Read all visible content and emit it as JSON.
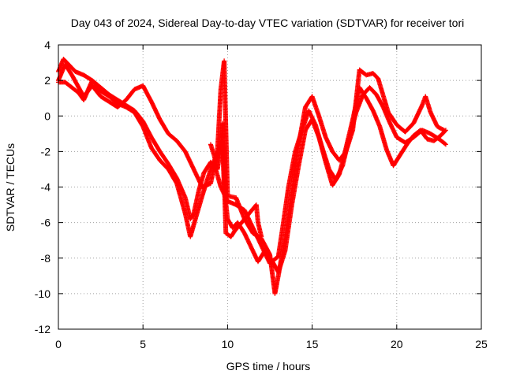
{
  "chart_data": {
    "type": "scatter",
    "title": "Day 043 of 2024, Sidereal Day-to-day VTEC variation (SDTVAR) for receiver tori",
    "xlabel": "GPS time / hours",
    "ylabel": "SDTVAR / TECUs",
    "xlim": [
      0,
      25
    ],
    "ylim": [
      -12,
      4
    ],
    "xticks": [
      "0",
      "5",
      "10",
      "15",
      "20",
      "25"
    ],
    "yticks": [
      "4",
      "2",
      "0",
      "-2",
      "-4",
      "-6",
      "-8",
      "-10",
      "-12"
    ],
    "grid": true,
    "marker": "+",
    "color": "#ff0000",
    "series": [
      {
        "values": [
          [
            0.0,
            2.5
          ],
          [
            0.3,
            3.2
          ],
          [
            0.6,
            2.9
          ],
          [
            1.0,
            2.5
          ],
          [
            1.5,
            2.3
          ],
          [
            2.0,
            2.0
          ],
          [
            2.5,
            1.6
          ],
          [
            3.0,
            1.2
          ],
          [
            3.5,
            0.9
          ],
          [
            4.0,
            0.6
          ],
          [
            4.5,
            0.3
          ],
          [
            5.0,
            -0.3
          ],
          [
            5.5,
            -1.2
          ],
          [
            6.0,
            -2.0
          ],
          [
            6.5,
            -2.7
          ],
          [
            7.0,
            -3.5
          ],
          [
            7.5,
            -4.6
          ],
          [
            7.8,
            -5.8
          ],
          [
            8.0,
            -5.5
          ],
          [
            8.3,
            -4.2
          ],
          [
            8.6,
            -3.2
          ],
          [
            9.0,
            -2.6
          ],
          [
            9.3,
            -3.0
          ],
          [
            9.6,
            -4.0
          ],
          [
            10.0,
            -4.8
          ],
          [
            10.5,
            -5.0
          ],
          [
            11.0,
            -5.3
          ],
          [
            11.5,
            -6.3
          ],
          [
            12.0,
            -7.3
          ],
          [
            12.5,
            -8.3
          ],
          [
            13.0,
            -7.9
          ],
          [
            13.3,
            -6.0
          ],
          [
            13.6,
            -4.0
          ],
          [
            14.0,
            -2.0
          ],
          [
            14.4,
            -0.8
          ],
          [
            14.8,
            0.3
          ],
          [
            15.2,
            -0.5
          ],
          [
            15.6,
            -1.8
          ],
          [
            16.0,
            -3.0
          ],
          [
            16.4,
            -3.6
          ],
          [
            16.8,
            -2.8
          ],
          [
            17.2,
            -1.2
          ],
          [
            17.6,
            0.2
          ],
          [
            18.0,
            1.2
          ],
          [
            18.4,
            1.6
          ],
          [
            18.8,
            1.2
          ],
          [
            19.2,
            0.5
          ],
          [
            19.6,
            -0.4
          ],
          [
            20.0,
            -1.2
          ],
          [
            20.5,
            -1.5
          ],
          [
            21.0,
            -1.2
          ],
          [
            21.5,
            -0.8
          ],
          [
            22.0,
            -1.0
          ],
          [
            22.5,
            -1.3
          ],
          [
            22.9,
            -1.6
          ]
        ]
      },
      {
        "values": [
          [
            0.0,
            1.9
          ],
          [
            0.4,
            1.9
          ],
          [
            0.8,
            1.6
          ],
          [
            1.2,
            1.3
          ],
          [
            1.5,
            0.9
          ],
          [
            2.0,
            2.0
          ],
          [
            2.5,
            1.4
          ],
          [
            3.0,
            1.1
          ],
          [
            3.5,
            0.7
          ],
          [
            4.0,
            0.5
          ],
          [
            4.5,
            0.2
          ],
          [
            5.0,
            -0.6
          ],
          [
            5.5,
            -1.8
          ],
          [
            6.0,
            -2.5
          ],
          [
            6.5,
            -3.0
          ],
          [
            7.0,
            -3.8
          ],
          [
            7.5,
            -5.5
          ],
          [
            7.8,
            -6.8
          ],
          [
            8.1,
            -5.8
          ],
          [
            8.5,
            -4.5
          ],
          [
            9.0,
            -3.0
          ],
          [
            9.4,
            -2.1
          ],
          [
            9.7,
            -1.4
          ],
          [
            9.8,
            -4.0
          ],
          [
            10.0,
            -5.8
          ],
          [
            10.3,
            -6.3
          ],
          [
            10.6,
            -6.0
          ],
          [
            11.0,
            -6.6
          ],
          [
            11.4,
            -7.4
          ],
          [
            11.8,
            -8.2
          ],
          [
            12.2,
            -7.6
          ],
          [
            12.6,
            -8.1
          ],
          [
            13.0,
            -8.8
          ],
          [
            13.4,
            -7.6
          ],
          [
            13.8,
            -5.0
          ],
          [
            14.2,
            -2.8
          ],
          [
            14.6,
            -0.8
          ],
          [
            15.0,
            -0.2
          ],
          [
            15.4,
            -1.2
          ],
          [
            15.8,
            -2.6
          ],
          [
            16.2,
            -3.9
          ],
          [
            16.6,
            -3.3
          ],
          [
            17.0,
            -1.8
          ],
          [
            17.4,
            -0.2
          ],
          [
            17.8,
            1.6
          ],
          [
            18.2,
            1.0
          ],
          [
            18.6,
            0.3
          ],
          [
            19.0,
            -0.6
          ],
          [
            19.4,
            -1.9
          ],
          [
            19.8,
            -2.8
          ],
          [
            20.2,
            -2.2
          ],
          [
            20.6,
            -1.6
          ],
          [
            21.0,
            -1.1
          ],
          [
            21.4,
            -0.8
          ],
          [
            21.8,
            -1.3
          ],
          [
            22.2,
            -1.4
          ],
          [
            22.6,
            -1.1
          ],
          [
            22.9,
            -0.8
          ]
        ]
      },
      {
        "values": [
          [
            0.0,
            2.0
          ],
          [
            0.4,
            2.9
          ],
          [
            0.8,
            2.3
          ],
          [
            1.2,
            1.6
          ],
          [
            1.5,
            1.1
          ],
          [
            2.0,
            1.7
          ],
          [
            2.5,
            1.1
          ],
          [
            3.0,
            0.8
          ],
          [
            3.5,
            0.5
          ],
          [
            4.0,
            0.9
          ],
          [
            4.5,
            1.5
          ],
          [
            5.0,
            1.7
          ],
          [
            5.5,
            0.8
          ],
          [
            6.0,
            -0.2
          ],
          [
            6.5,
            -1.0
          ],
          [
            7.0,
            -1.4
          ],
          [
            7.5,
            -2.0
          ],
          [
            8.0,
            -3.0
          ],
          [
            8.5,
            -4.0
          ],
          [
            9.0,
            -3.8
          ],
          [
            9.4,
            -2.0
          ],
          [
            9.6,
            1.5
          ],
          [
            9.8,
            3.1
          ],
          [
            10.0,
            -4.5
          ],
          [
            10.5,
            -4.6
          ],
          [
            11.0,
            -5.8
          ],
          [
            11.5,
            -6.6
          ],
          [
            12.0,
            -6.9
          ],
          [
            12.5,
            -7.8
          ],
          [
            12.8,
            -10.0
          ],
          [
            13.0,
            -9.0
          ],
          [
            13.4,
            -6.8
          ],
          [
            13.8,
            -4.2
          ],
          [
            14.2,
            -1.6
          ],
          [
            14.6,
            0.5
          ],
          [
            15.0,
            1.1
          ],
          [
            15.4,
            0.0
          ],
          [
            15.8,
            -1.2
          ],
          [
            16.2,
            -2.0
          ],
          [
            16.6,
            -2.5
          ],
          [
            17.0,
            -2.0
          ],
          [
            17.4,
            -0.8
          ],
          [
            17.8,
            2.6
          ],
          [
            18.2,
            2.3
          ],
          [
            18.6,
            2.4
          ],
          [
            18.9,
            2.1
          ],
          [
            19.5,
            0.2
          ],
          [
            20.0,
            -0.5
          ],
          [
            20.5,
            -0.9
          ],
          [
            21.0,
            -0.4
          ],
          [
            21.5,
            0.6
          ],
          [
            21.7,
            1.1
          ],
          [
            22.0,
            0.2
          ],
          [
            22.4,
            -0.6
          ],
          [
            22.8,
            -0.8
          ]
        ]
      },
      {
        "values": [
          [
            9.0,
            -1.6
          ],
          [
            9.2,
            -2.2
          ],
          [
            9.4,
            -3.0
          ],
          [
            9.6,
            -1.8
          ],
          [
            9.7,
            -0.4
          ],
          [
            9.9,
            -6.6
          ],
          [
            10.2,
            -6.8
          ],
          [
            10.4,
            -6.5
          ],
          [
            11.7,
            -5.0
          ],
          [
            11.8,
            -6.0
          ],
          [
            12.0,
            -6.8
          ]
        ]
      }
    ]
  }
}
